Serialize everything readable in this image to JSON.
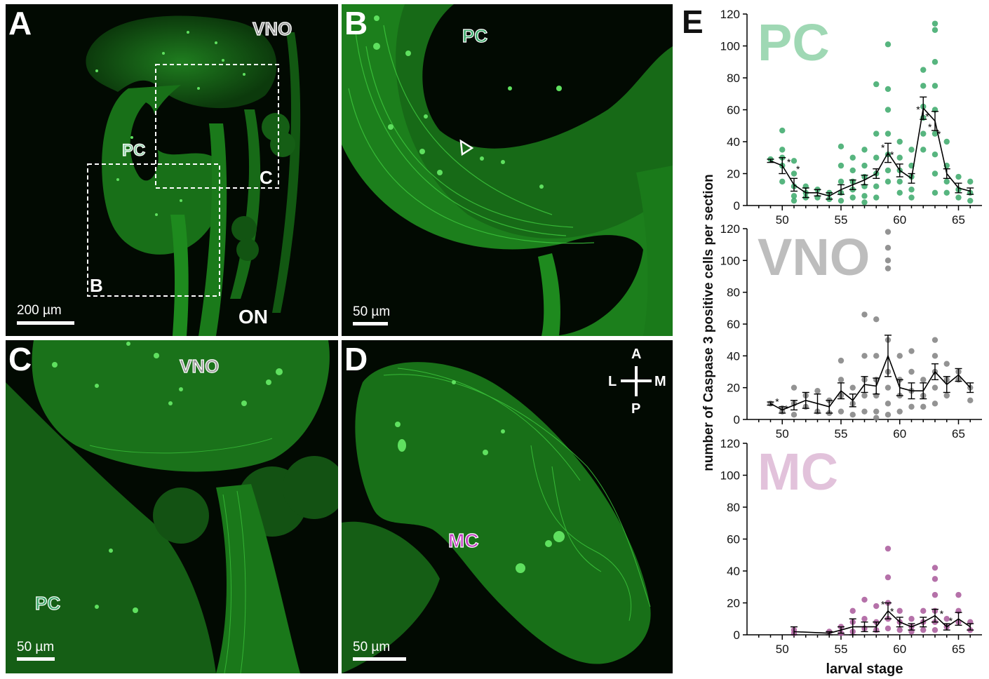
{
  "panels": {
    "A": {
      "label": "A",
      "regions": {
        "vno": "VNO",
        "pc": "PC",
        "on": "ON"
      },
      "boxes": {
        "b": "B",
        "c": "C"
      },
      "scale": "200 µm"
    },
    "B": {
      "label": "B",
      "regions": {
        "pc": "PC"
      },
      "scale": "50 µm"
    },
    "C": {
      "label": "C",
      "regions": {
        "vno": "VNO",
        "pc": "PC"
      },
      "scale": "50 µm"
    },
    "D": {
      "label": "D",
      "regions": {
        "mc": "MC"
      },
      "compass": {
        "a": "A",
        "p": "P",
        "l": "L",
        "m": "M"
      },
      "scale": "50 µm"
    }
  },
  "panel_e": {
    "label": "E"
  },
  "chart_data": {
    "type": "scatter",
    "ylabel": "number of Caspase 3 positive cells per section",
    "xlabel": "larval stage",
    "xlim": [
      47,
      67
    ],
    "xticks": [
      50,
      55,
      60,
      65
    ],
    "subplots": [
      {
        "name": "PC",
        "color": "#3aa869",
        "label_color": "#9fd8b4",
        "ylim": [
          0,
          120
        ],
        "yticks": [
          0,
          20,
          40,
          60,
          80,
          100,
          120
        ],
        "mean": [
          [
            49,
            28
          ],
          [
            50,
            25
          ],
          [
            51,
            13
          ],
          [
            52,
            8
          ],
          [
            53,
            8
          ],
          [
            54,
            6
          ],
          [
            55,
            10
          ],
          [
            56,
            13
          ],
          [
            57,
            16
          ],
          [
            58,
            20
          ],
          [
            59,
            33
          ],
          [
            60,
            22
          ],
          [
            61,
            17
          ],
          [
            62,
            61
          ],
          [
            63,
            53
          ],
          [
            64,
            20
          ],
          [
            65,
            11
          ],
          [
            66,
            9
          ]
        ],
        "err": [
          [
            49,
            1
          ],
          [
            50,
            5
          ],
          [
            51,
            4
          ],
          [
            52,
            3
          ],
          [
            53,
            2
          ],
          [
            54,
            2
          ],
          [
            55,
            3
          ],
          [
            56,
            3
          ],
          [
            57,
            3
          ],
          [
            58,
            3
          ],
          [
            59,
            6
          ],
          [
            60,
            4
          ],
          [
            61,
            3
          ],
          [
            62,
            7
          ],
          [
            63,
            6
          ],
          [
            64,
            3
          ],
          [
            65,
            3
          ],
          [
            66,
            2
          ]
        ],
        "points": [
          [
            49,
            29
          ],
          [
            50,
            47
          ],
          [
            50,
            35
          ],
          [
            50,
            30
          ],
          [
            50,
            25
          ],
          [
            50,
            15
          ],
          [
            51,
            28
          ],
          [
            51,
            20
          ],
          [
            51,
            12
          ],
          [
            51,
            6
          ],
          [
            51,
            3
          ],
          [
            52,
            12
          ],
          [
            52,
            8
          ],
          [
            52,
            5
          ],
          [
            53,
            10
          ],
          [
            53,
            5
          ],
          [
            54,
            8
          ],
          [
            54,
            4
          ],
          [
            55,
            37
          ],
          [
            55,
            25
          ],
          [
            55,
            15
          ],
          [
            55,
            8
          ],
          [
            55,
            3
          ],
          [
            56,
            30
          ],
          [
            56,
            22
          ],
          [
            56,
            15
          ],
          [
            56,
            10
          ],
          [
            56,
            5
          ],
          [
            57,
            35
          ],
          [
            57,
            25
          ],
          [
            57,
            18
          ],
          [
            57,
            12
          ],
          [
            57,
            6
          ],
          [
            57,
            2
          ],
          [
            58,
            76
          ],
          [
            58,
            45
          ],
          [
            58,
            30
          ],
          [
            58,
            20
          ],
          [
            58,
            12
          ],
          [
            58,
            5
          ],
          [
            59,
            101
          ],
          [
            59,
            73
          ],
          [
            59,
            60
          ],
          [
            59,
            45
          ],
          [
            59,
            32
          ],
          [
            59,
            22
          ],
          [
            59,
            15
          ],
          [
            60,
            40
          ],
          [
            60,
            30
          ],
          [
            60,
            22
          ],
          [
            60,
            15
          ],
          [
            60,
            8
          ],
          [
            61,
            35
          ],
          [
            61,
            25
          ],
          [
            61,
            18
          ],
          [
            61,
            10
          ],
          [
            61,
            5
          ],
          [
            62,
            85
          ],
          [
            62,
            75
          ],
          [
            62,
            62
          ],
          [
            62,
            55
          ],
          [
            62,
            45
          ],
          [
            62,
            35
          ],
          [
            63,
            114
          ],
          [
            63,
            110
          ],
          [
            63,
            90
          ],
          [
            63,
            75
          ],
          [
            63,
            60
          ],
          [
            63,
            45
          ],
          [
            63,
            32
          ],
          [
            63,
            20
          ],
          [
            63,
            8
          ],
          [
            64,
            40
          ],
          [
            64,
            25
          ],
          [
            64,
            15
          ],
          [
            64,
            8
          ],
          [
            65,
            18
          ],
          [
            65,
            10
          ],
          [
            65,
            5
          ],
          [
            66,
            15
          ],
          [
            66,
            8
          ],
          [
            66,
            3
          ]
        ],
        "asterisks": [
          [
            51,
            25
          ],
          [
            62,
            58
          ],
          [
            63,
            47
          ],
          [
            59,
            34
          ]
        ]
      },
      {
        "name": "VNO",
        "color": "#808080",
        "label_color": "#bdbdbd",
        "ylim": [
          0,
          120
        ],
        "yticks": [
          0,
          20,
          40,
          60,
          80,
          100,
          120
        ],
        "mean": [
          [
            49,
            10
          ],
          [
            50,
            6
          ],
          [
            51,
            9
          ],
          [
            52,
            12
          ],
          [
            53,
            10
          ],
          [
            54,
            8
          ],
          [
            55,
            18
          ],
          [
            56,
            12
          ],
          [
            57,
            22
          ],
          [
            58,
            21
          ],
          [
            59,
            40
          ],
          [
            60,
            20
          ],
          [
            61,
            18
          ],
          [
            62,
            18
          ],
          [
            63,
            30
          ],
          [
            64,
            22
          ],
          [
            65,
            28
          ],
          [
            66,
            20
          ]
        ],
        "err": [
          [
            49,
            1
          ],
          [
            50,
            2
          ],
          [
            51,
            3
          ],
          [
            52,
            5
          ],
          [
            53,
            6
          ],
          [
            54,
            4
          ],
          [
            55,
            5
          ],
          [
            56,
            4
          ],
          [
            57,
            5
          ],
          [
            58,
            5
          ],
          [
            59,
            13
          ],
          [
            60,
            5
          ],
          [
            61,
            5
          ],
          [
            62,
            5
          ],
          [
            63,
            5
          ],
          [
            64,
            5
          ],
          [
            65,
            4
          ],
          [
            66,
            3
          ]
        ],
        "points": [
          [
            49,
            10
          ],
          [
            50,
            7
          ],
          [
            50,
            5
          ],
          [
            51,
            20
          ],
          [
            51,
            10
          ],
          [
            51,
            3
          ],
          [
            52,
            15
          ],
          [
            52,
            8
          ],
          [
            53,
            18
          ],
          [
            53,
            5
          ],
          [
            54,
            12
          ],
          [
            54,
            4
          ],
          [
            55,
            37
          ],
          [
            55,
            25
          ],
          [
            55,
            15
          ],
          [
            55,
            5
          ],
          [
            56,
            20
          ],
          [
            56,
            10
          ],
          [
            56,
            3
          ],
          [
            57,
            66
          ],
          [
            57,
            40
          ],
          [
            57,
            25
          ],
          [
            57,
            15
          ],
          [
            57,
            5
          ],
          [
            58,
            63
          ],
          [
            58,
            40
          ],
          [
            58,
            25
          ],
          [
            58,
            15
          ],
          [
            58,
            5
          ],
          [
            58,
            1
          ],
          [
            59,
            118
          ],
          [
            59,
            108
          ],
          [
            59,
            100
          ],
          [
            59,
            95
          ],
          [
            59,
            50
          ],
          [
            59,
            30
          ],
          [
            59,
            20
          ],
          [
            59,
            10
          ],
          [
            59,
            3
          ],
          [
            60,
            40
          ],
          [
            60,
            25
          ],
          [
            60,
            15
          ],
          [
            60,
            5
          ],
          [
            61,
            43
          ],
          [
            61,
            30
          ],
          [
            61,
            18
          ],
          [
            61,
            8
          ],
          [
            62,
            25
          ],
          [
            62,
            15
          ],
          [
            62,
            8
          ],
          [
            63,
            50
          ],
          [
            63,
            40
          ],
          [
            63,
            30
          ],
          [
            63,
            20
          ],
          [
            63,
            10
          ],
          [
            64,
            35
          ],
          [
            64,
            25
          ],
          [
            64,
            15
          ],
          [
            65,
            30
          ],
          [
            65,
            25
          ],
          [
            66,
            20
          ],
          [
            66,
            12
          ]
        ],
        "asterisks": [
          [
            50,
            9
          ]
        ]
      },
      {
        "name": "MC",
        "color": "#a8589a",
        "label_color": "#e2c2db",
        "ylim": [
          0,
          120
        ],
        "yticks": [
          0,
          20,
          40,
          60,
          80,
          100,
          120
        ],
        "mean": [
          [
            51,
            2
          ],
          [
            54,
            1
          ],
          [
            55,
            3
          ],
          [
            56,
            5
          ],
          [
            57,
            5
          ],
          [
            58,
            5
          ],
          [
            59,
            15
          ],
          [
            60,
            8
          ],
          [
            61,
            5
          ],
          [
            62,
            8
          ],
          [
            63,
            12
          ],
          [
            64,
            5
          ],
          [
            65,
            10
          ],
          [
            66,
            5
          ]
        ],
        "err": [
          [
            51,
            3
          ],
          [
            54,
            1
          ],
          [
            55,
            2
          ],
          [
            56,
            5
          ],
          [
            57,
            3
          ],
          [
            58,
            3
          ],
          [
            59,
            5
          ],
          [
            60,
            3
          ],
          [
            61,
            2
          ],
          [
            62,
            3
          ],
          [
            63,
            4
          ],
          [
            64,
            2
          ],
          [
            65,
            4
          ],
          [
            66,
            2
          ]
        ],
        "points": [
          [
            51,
            3
          ],
          [
            51,
            1
          ],
          [
            54,
            2
          ],
          [
            55,
            5
          ],
          [
            55,
            1
          ],
          [
            56,
            15
          ],
          [
            56,
            8
          ],
          [
            56,
            2
          ],
          [
            57,
            22
          ],
          [
            57,
            10
          ],
          [
            57,
            4
          ],
          [
            58,
            18
          ],
          [
            58,
            8
          ],
          [
            58,
            3
          ],
          [
            59,
            54
          ],
          [
            59,
            36
          ],
          [
            59,
            20
          ],
          [
            59,
            10
          ],
          [
            59,
            4
          ],
          [
            60,
            15
          ],
          [
            60,
            8
          ],
          [
            60,
            3
          ],
          [
            61,
            10
          ],
          [
            61,
            5
          ],
          [
            61,
            2
          ],
          [
            62,
            15
          ],
          [
            62,
            8
          ],
          [
            62,
            3
          ],
          [
            63,
            42
          ],
          [
            63,
            35
          ],
          [
            63,
            25
          ],
          [
            63,
            15
          ],
          [
            63,
            8
          ],
          [
            63,
            3
          ],
          [
            64,
            10
          ],
          [
            64,
            5
          ],
          [
            65,
            25
          ],
          [
            65,
            15
          ],
          [
            65,
            8
          ],
          [
            66,
            8
          ],
          [
            66,
            3
          ]
        ],
        "asterisks": [
          [
            59,
            17
          ],
          [
            64,
            11
          ]
        ]
      }
    ]
  }
}
